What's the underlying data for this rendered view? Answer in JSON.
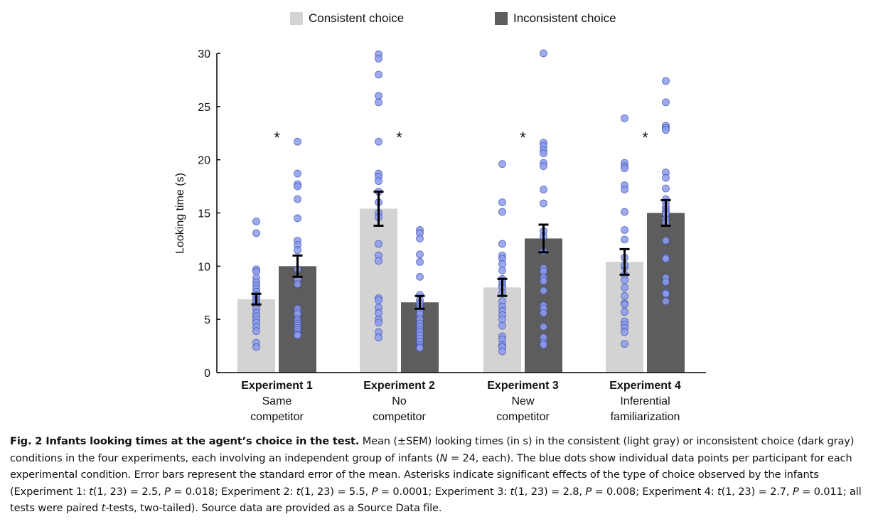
{
  "colors": {
    "consistent": "#d3d3d3",
    "inconsistent": "#5d5d5d",
    "dot_fill": "#8c9ceb",
    "dot_stroke": "#3949a8",
    "error_bar": "#000000"
  },
  "legend": [
    {
      "label": "Consistent choice",
      "color": "#d3d3d3"
    },
    {
      "label": "Inconsistent choice",
      "color": "#5d5d5d"
    }
  ],
  "chart_data": {
    "type": "bar",
    "ylabel": "Looking time (s)",
    "xlabel": "",
    "ylim": [
      0,
      30
    ],
    "yticks": [
      0,
      5,
      10,
      15,
      20,
      25,
      30
    ],
    "grid": false,
    "legend_position": "top",
    "categories": [
      {
        "title": "Experiment 1",
        "subtitle": [
          "Same",
          "competitor"
        ]
      },
      {
        "title": "Experiment 2",
        "subtitle": [
          "No",
          "competitor"
        ]
      },
      {
        "title": "Experiment 3",
        "subtitle": [
          "New",
          "competitor"
        ]
      },
      {
        "title": "Experiment 4",
        "subtitle": [
          "Inferential",
          "familiarization"
        ]
      }
    ],
    "series": [
      {
        "name": "Consistent choice",
        "values": [
          6.9,
          15.4,
          8.0,
          10.4
        ],
        "sem": [
          0.5,
          1.6,
          0.8,
          1.2
        ],
        "points": [
          [
            14.2,
            13.1,
            9.7,
            9.5,
            8.9,
            8.5,
            8.2,
            7.9,
            7.6,
            7.3,
            7.1,
            6.9,
            6.7,
            6.5,
            6.3,
            6.0,
            5.6,
            5.3,
            5.0,
            4.7,
            4.3,
            3.9,
            2.8,
            2.4
          ],
          [
            29.9,
            29.5,
            28.0,
            26.0,
            25.4,
            21.7,
            18.7,
            18.4,
            18.0,
            17.0,
            16.0,
            15.0,
            14.6,
            12.1,
            11.0,
            10.5,
            7.0,
            6.8,
            6.1,
            5.6,
            5.0,
            4.7,
            3.8,
            3.3
          ],
          [
            19.6,
            16.0,
            15.1,
            12.1,
            11.0,
            10.7,
            10.2,
            9.6,
            8.8,
            8.6,
            8.2,
            8.0,
            7.5,
            6.7,
            6.2,
            5.8,
            5.4,
            5.0,
            4.4,
            3.4,
            3.1,
            2.6,
            2.4,
            2.0
          ],
          [
            23.9,
            19.7,
            19.4,
            19.2,
            17.6,
            17.2,
            15.1,
            13.4,
            12.5,
            10.8,
            9.9,
            9.2,
            8.7,
            8.0,
            7.2,
            6.5,
            6.4,
            5.7,
            4.8,
            4.5,
            4.2,
            3.8,
            2.7,
            10.1
          ]
        ]
      },
      {
        "name": "Inconsistent choice",
        "values": [
          10.0,
          6.6,
          12.6,
          15.0
        ],
        "sem": [
          1.0,
          0.6,
          1.3,
          1.2
        ],
        "points": [
          [
            21.7,
            18.7,
            17.7,
            17.5,
            16.3,
            14.5,
            12.4,
            12.0,
            11.5,
            9.7,
            8.8,
            8.3,
            6.0,
            5.7,
            5.5,
            5.0,
            4.8,
            4.6,
            4.4,
            4.2,
            4.0,
            3.8,
            3.6,
            3.5
          ],
          [
            13.4,
            13.1,
            12.6,
            11.1,
            10.4,
            9.0,
            7.3,
            6.8,
            6.5,
            6.2,
            6.0,
            5.8,
            5.5,
            5.0,
            4.6,
            4.3,
            4.0,
            3.8,
            3.5,
            3.2,
            2.9,
            2.6,
            2.4,
            2.3
          ],
          [
            30.0,
            21.6,
            21.3,
            20.9,
            20.6,
            19.7,
            19.4,
            17.2,
            15.9,
            13.3,
            12.8,
            11.4,
            9.8,
            9.5,
            8.9,
            8.6,
            7.7,
            6.3,
            6.0,
            5.6,
            4.3,
            3.3,
            2.8,
            2.6
          ],
          [
            27.4,
            25.4,
            23.2,
            23.0,
            22.8,
            18.8,
            18.3,
            17.3,
            16.3,
            16.0,
            15.6,
            15.3,
            15.1,
            14.9,
            14.4,
            14.1,
            12.4,
            10.8,
            10.7,
            8.9,
            8.5,
            7.5,
            7.4,
            6.7
          ]
        ]
      }
    ],
    "annotations": [
      {
        "category": 0,
        "text": "*"
      },
      {
        "category": 1,
        "text": "*"
      },
      {
        "category": 2,
        "text": "*"
      },
      {
        "category": 3,
        "text": "*"
      }
    ]
  },
  "caption": {
    "title": "Fig. 2 Infants looking times at the agent’s choice in the test.",
    "segments": [
      {
        "t": " Mean (±SEM) looking times (in s) in the consistent (light gray) or inconsistent choice (dark gray) conditions in the four experiments, each involving an independent group of infants (",
        "s": ""
      },
      {
        "t": "N",
        "s": "ital"
      },
      {
        "t": " = 24, each). The blue dots show individual data points per participant for each experimental condition. Error bars represent the standard error of the mean. Asterisks indicate significant effects of the type of choice observed by the infants (Experiment 1: ",
        "s": ""
      },
      {
        "t": "t",
        "s": "ital"
      },
      {
        "t": "(1, 23) = 2.5, ",
        "s": ""
      },
      {
        "t": "P",
        "s": "ital"
      },
      {
        "t": " = 0.018; Experiment 2: ",
        "s": ""
      },
      {
        "t": "t",
        "s": "ital"
      },
      {
        "t": "(1, 23) = 5.5, ",
        "s": ""
      },
      {
        "t": "P",
        "s": "ital"
      },
      {
        "t": " = 0.0001; Experiment 3: ",
        "s": ""
      },
      {
        "t": "t",
        "s": "ital"
      },
      {
        "t": "(1, 23) = 2.8, ",
        "s": ""
      },
      {
        "t": "P",
        "s": "ital"
      },
      {
        "t": " = 0.008; Experiment 4: ",
        "s": ""
      },
      {
        "t": "t",
        "s": "ital"
      },
      {
        "t": "(1, 23) = 2.7, ",
        "s": ""
      },
      {
        "t": "P",
        "s": "ital"
      },
      {
        "t": " = 0.011; all tests were paired ",
        "s": ""
      },
      {
        "t": "t",
        "s": "ital"
      },
      {
        "t": "-tests, two-tailed). Source data are provided as a Source Data file.",
        "s": ""
      }
    ]
  }
}
